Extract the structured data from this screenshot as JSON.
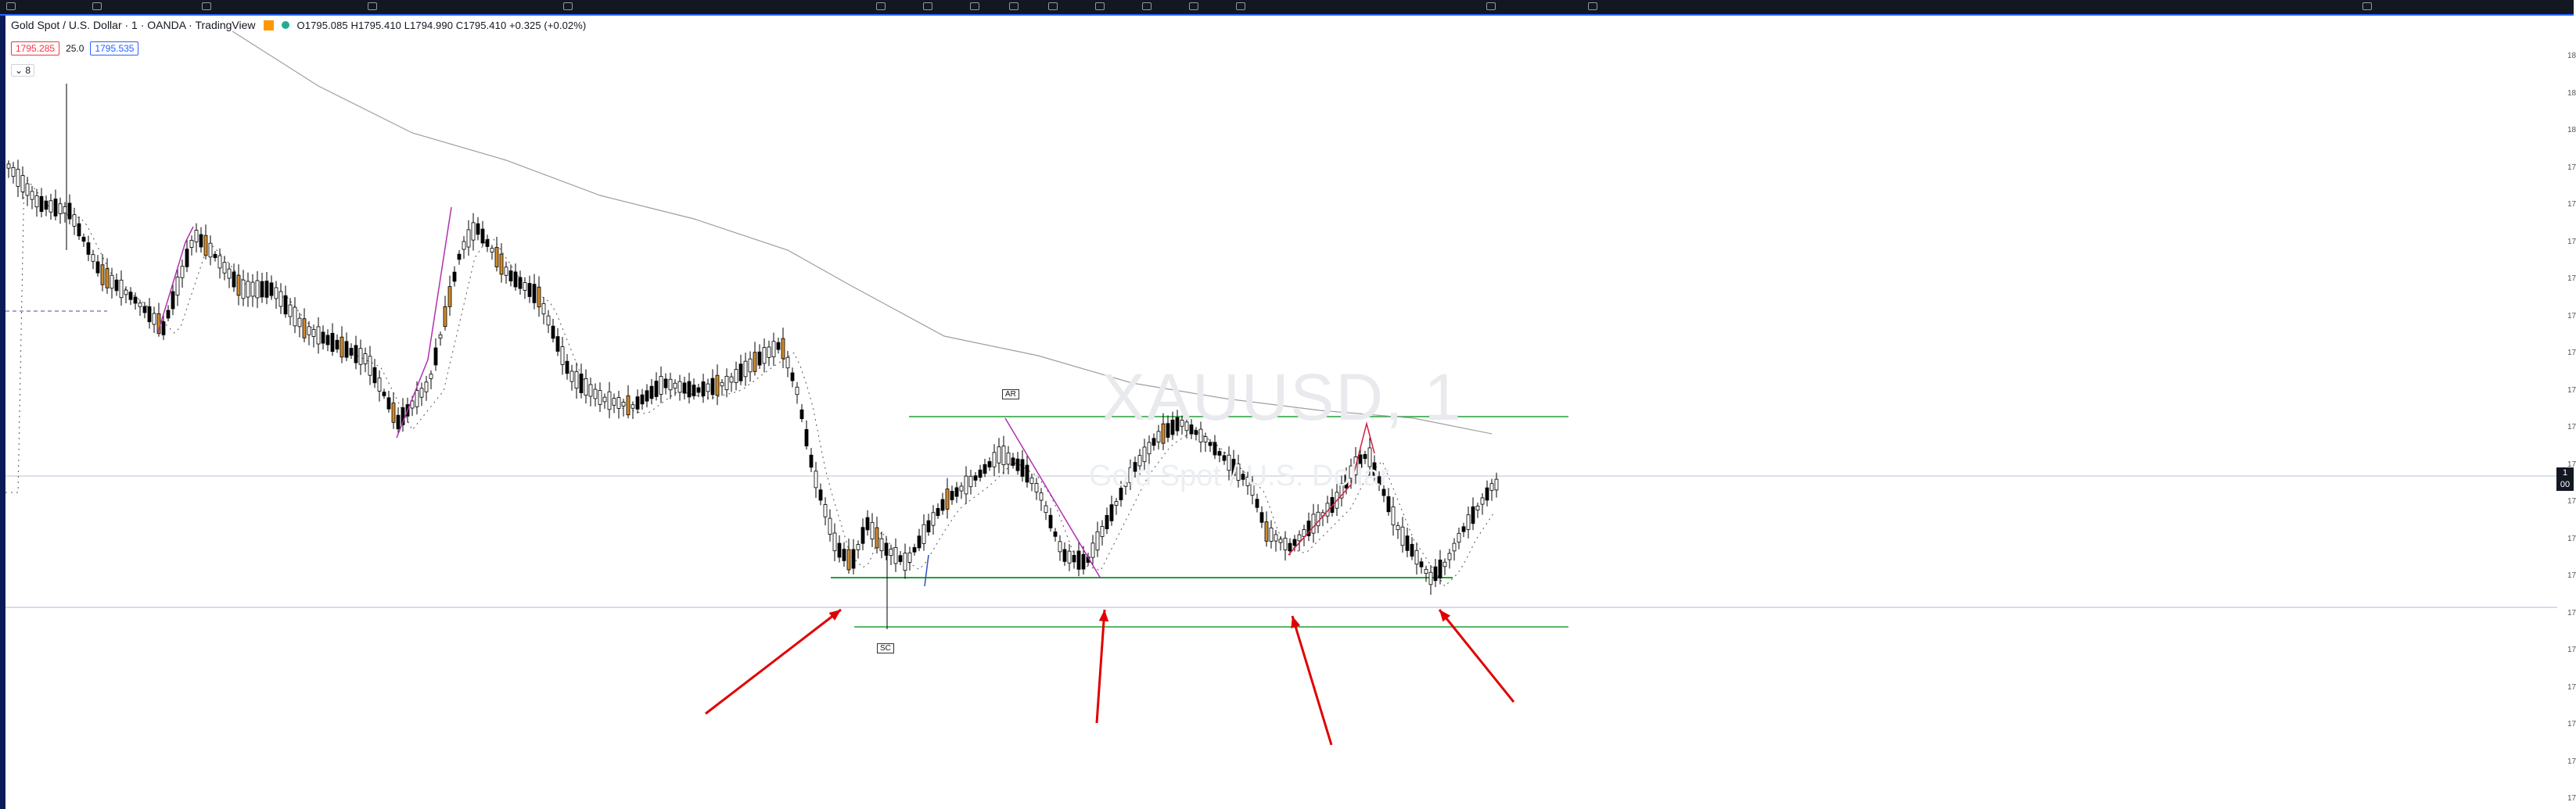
{
  "header": {
    "symbol_title": "Gold Spot / U.S. Dollar · 1 · OANDA · TradingView",
    "ohlc": "O1795.085 H1795.410 L1794.990 C1795.410 +0.325 (+0.02%)",
    "sell_price": "1795.285",
    "spread": "25.0",
    "buy_price": "1795.535",
    "indicators_toggle": "⌄ 8",
    "status_colors": {
      "exchange_badge": "#ff9800",
      "market_open_dot": "#22ab94"
    }
  },
  "watermark": {
    "symbol": "XAUUSD, 1",
    "description": "Gold Spot / U.S. Dollar"
  },
  "annotations": {
    "ar_label": "AR",
    "sc_label": "SC"
  },
  "price_axis": {
    "ticks": [
      "18",
      "18",
      "18",
      "17",
      "17",
      "17",
      "17",
      "17",
      "17",
      "17",
      "17",
      "17",
      "17",
      "17",
      "17",
      "17",
      "17",
      "17",
      "17",
      "17",
      "17"
    ],
    "last_price_label": "1\n00"
  },
  "colors": {
    "bull_candle": "#ffffff",
    "bear_candle": "#000000",
    "highlight_candle": "#d38a2a",
    "support_line": "#22a036",
    "arrow": "#e00000",
    "swing_line": "#b030b0",
    "sma_line": "#9e9e9e"
  },
  "icons": {
    "topbar": [
      "menu-icon",
      "plus-icon",
      "interval-icon",
      "indicators-icon",
      "layout-icon",
      "cursor-icon",
      "trendline-icon",
      "fib-icon",
      "pattern-icon",
      "text-icon",
      "measure-icon",
      "zoom-icon",
      "magnet-icon",
      "lock-icon",
      "eye-icon",
      "trash-icon",
      "settings-icon"
    ]
  }
}
